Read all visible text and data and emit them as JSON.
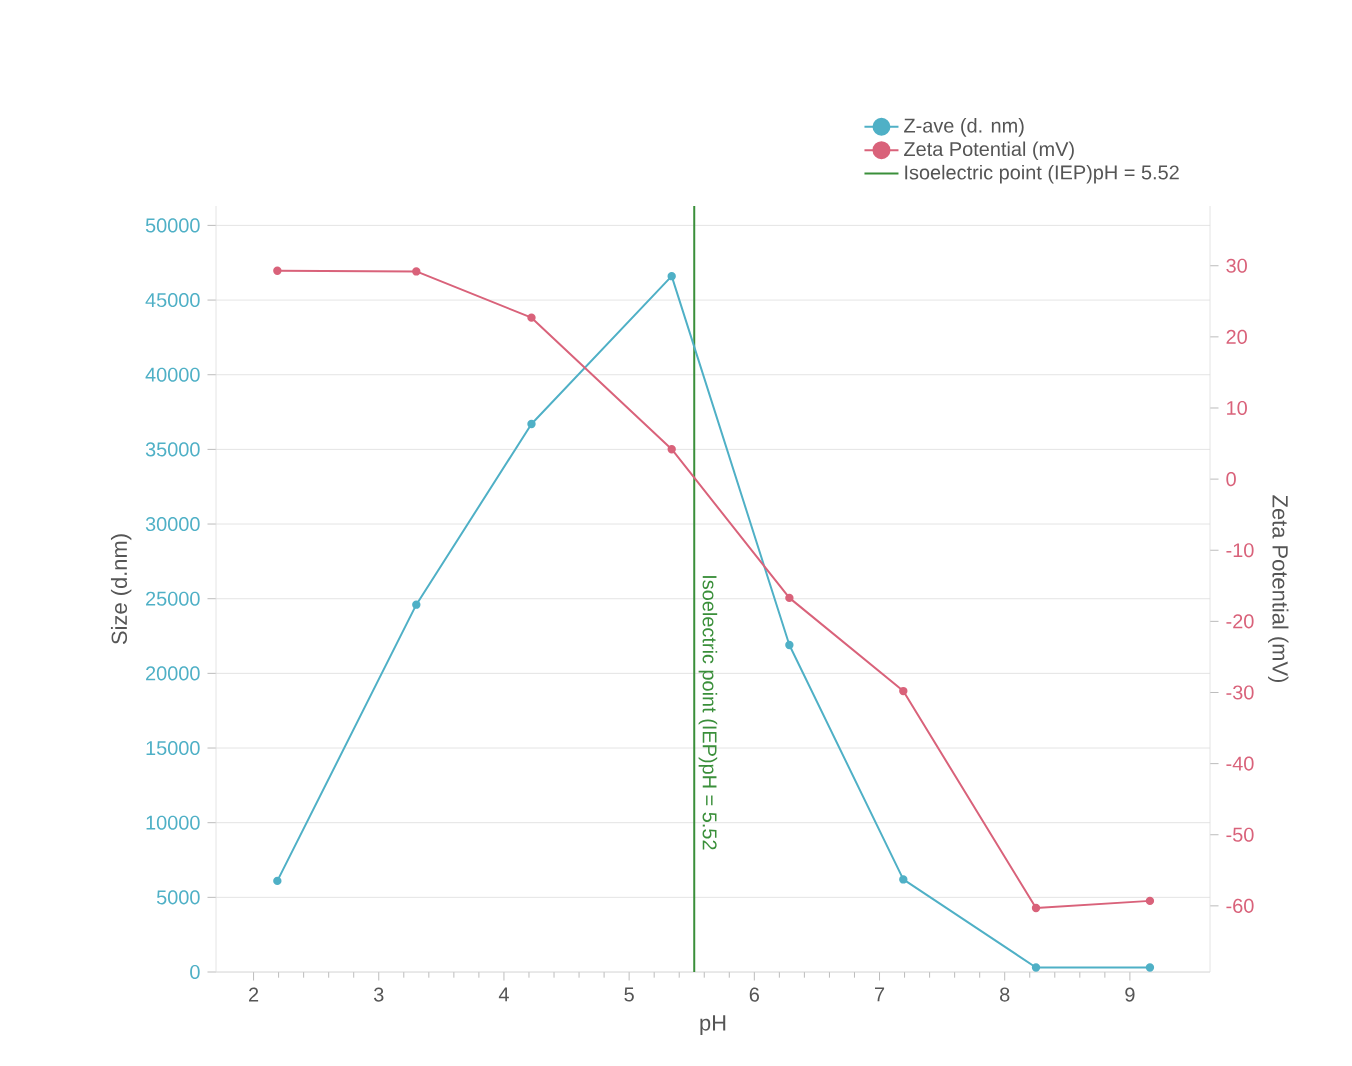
{
  "chart_data": {
    "type": "line",
    "xlabel": "pH",
    "ylabel": "Size (d.nm)",
    "y2label": "Zeta Potential (mV)",
    "xlim": [
      1.7,
      9.64
    ],
    "xticks": [
      2,
      3,
      4,
      5,
      6,
      7,
      8,
      9
    ],
    "ylim": [
      0,
      51300
    ],
    "yticks": [
      0,
      5000,
      10000,
      15000,
      20000,
      25000,
      30000,
      35000,
      40000,
      45000,
      50000
    ],
    "y2lim": [
      -69.3,
      38.4
    ],
    "y2ticks": [
      -60,
      -50,
      -40,
      -30,
      -20,
      -10,
      0,
      10,
      20,
      30
    ],
    "grid": "y",
    "legend": "top right",
    "marker": "circle",
    "line_style": "solid",
    "series": [
      {
        "name": "Z-ave (d. nm)",
        "color": "#4fb0c6",
        "axis": "y",
        "x": [
          2.19,
          3.3,
          4.22,
          5.34,
          6.28,
          7.19,
          8.25,
          9.16
        ],
        "values": [
          6100,
          24600,
          36700,
          46600,
          21900,
          6200,
          300,
          300
        ]
      },
      {
        "name": "Zeta Potential (mV)",
        "color": "#d9627a",
        "axis": "y2",
        "x": [
          2.19,
          3.3,
          4.22,
          5.34,
          6.28,
          7.19,
          8.25,
          9.16
        ],
        "values": [
          29.3,
          29.2,
          22.7,
          4.2,
          -16.7,
          -29.8,
          -60.3,
          -59.3
        ]
      }
    ],
    "ref_lines": [
      {
        "axis": "x",
        "value": 5.52,
        "label": "Isoelectric point (IEP)pH = 5.52",
        "color": "#3a8f3a"
      }
    ]
  }
}
